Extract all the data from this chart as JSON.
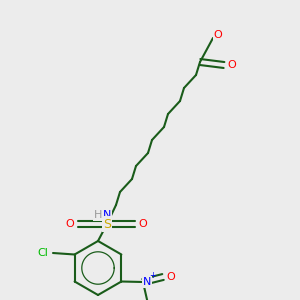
{
  "bg_color": "#ececec",
  "bond_color": "#1a5c1a",
  "bond_width": 1.5,
  "atom_colors": {
    "O": "#ff0000",
    "N": "#0000ff",
    "S": "#ccaa00",
    "Cl": "#00bb00",
    "H": "#999999",
    "C": "#1a5c1a"
  },
  "figsize": [
    3.0,
    3.0
  ],
  "dpi": 100,
  "xlim": [
    0,
    300
  ],
  "ylim": [
    0,
    300
  ]
}
